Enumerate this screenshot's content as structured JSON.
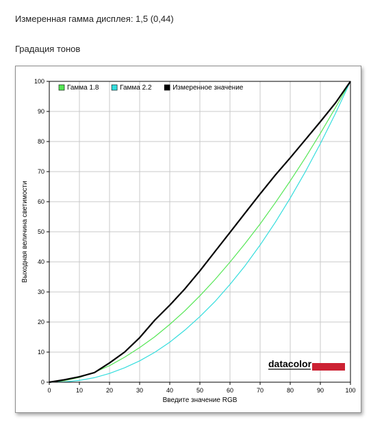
{
  "header": {
    "measured_gamma": "Измеренная гамма дисплея: 1,5 (0,44)",
    "section_title": "Градация тонов"
  },
  "logo_text": "datacolor",
  "colors": {
    "gamma18": "#55e655",
    "gamma22": "#33dddd",
    "measured": "#000000",
    "logo_bar": "#cc2233",
    "grid": "#c8c8c8"
  },
  "chart_data": {
    "type": "line",
    "title": "",
    "xlabel": "Введите значение RGB",
    "ylabel": "Выходная величина светимости",
    "xlim": [
      0,
      100
    ],
    "ylim": [
      0,
      100
    ],
    "xticks": [
      0,
      10,
      20,
      30,
      40,
      50,
      60,
      70,
      80,
      90,
      100
    ],
    "yticks": [
      0,
      10,
      20,
      30,
      40,
      50,
      60,
      70,
      80,
      90,
      100
    ],
    "grid": true,
    "legend_position": "top-left",
    "series": [
      {
        "name": "Гамма 1.8",
        "color": "#55e655",
        "x": [
          0,
          5,
          10,
          15,
          20,
          25,
          30,
          35,
          40,
          45,
          50,
          55,
          60,
          65,
          70,
          75,
          80,
          85,
          90,
          95,
          100
        ],
        "y": [
          0,
          0.5,
          1.6,
          3.3,
          5.5,
          8.3,
          11.5,
          15.1,
          19.2,
          23.7,
          28.7,
          34.1,
          39.9,
          46.1,
          52.6,
          59.6,
          66.9,
          74.6,
          82.7,
          91.2,
          100
        ]
      },
      {
        "name": "Гамма 2.2",
        "color": "#33dddd",
        "x": [
          0,
          5,
          10,
          15,
          20,
          25,
          30,
          35,
          40,
          45,
          50,
          55,
          60,
          65,
          70,
          75,
          80,
          85,
          90,
          95,
          100
        ],
        "y": [
          0,
          0.1,
          0.6,
          1.5,
          2.9,
          4.8,
          7.1,
          9.9,
          13.3,
          17.3,
          21.8,
          26.8,
          32.5,
          38.7,
          45.6,
          53.1,
          61.2,
          69.9,
          79.3,
          89.3,
          100
        ]
      },
      {
        "name": "Измеренное значение",
        "color": "#000000",
        "x": [
          0,
          5,
          10,
          15,
          20,
          25,
          30,
          35,
          40,
          45,
          50,
          55,
          60,
          65,
          70,
          75,
          80,
          85,
          90,
          95,
          100
        ],
        "y": [
          0,
          0.8,
          1.8,
          3.2,
          6.4,
          10.0,
          14.8,
          20.6,
          25.6,
          31.0,
          37.0,
          43.4,
          49.8,
          56.2,
          62.6,
          68.8,
          74.6,
          80.6,
          86.6,
          92.8,
          100
        ]
      }
    ]
  }
}
